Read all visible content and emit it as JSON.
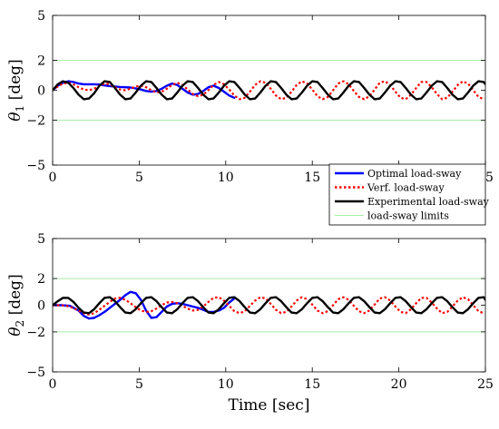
{
  "chart_data": [
    {
      "type": "line",
      "ylabel_symbol": "θ",
      "ylabel_sub": "1",
      "ylabel_unit": "[deg]",
      "xlim": [
        0,
        25
      ],
      "ylim": [
        -5,
        5
      ],
      "xticks": [
        0,
        5,
        10,
        15,
        20,
        25
      ],
      "yticks": [
        -5,
        -2,
        0,
        2,
        5
      ],
      "grid": false,
      "limits": [
        2,
        -2
      ],
      "legend": {
        "position": "bottom-right",
        "entries": [
          "Optimal load-sway",
          "Verf. load-sway",
          "Experimental load-sway",
          "load-sway limits"
        ]
      },
      "series": [
        {
          "name": "Optimal load-sway",
          "color": "#0000ff",
          "dash": "solid",
          "x": [
            0,
            0.3,
            0.6,
            0.9,
            1.2,
            1.5,
            1.8,
            2.1,
            2.4,
            2.7,
            3.0,
            3.3,
            3.6,
            3.9,
            4.2,
            4.5,
            4.8,
            5.1,
            5.4,
            5.7,
            6.0,
            6.3,
            6.6,
            6.9,
            7.2,
            7.5,
            7.8,
            8.1,
            8.4,
            8.7,
            9.0,
            9.3,
            9.6,
            9.9,
            10.2,
            10.5
          ],
          "y": [
            0,
            0.3,
            0.5,
            0.6,
            0.55,
            0.45,
            0.4,
            0.4,
            0.4,
            0.38,
            0.32,
            0.28,
            0.25,
            0.22,
            0.2,
            0.18,
            0.12,
            0.05,
            -0.05,
            -0.1,
            -0.05,
            0.1,
            0.3,
            0.45,
            0.35,
            0.1,
            -0.15,
            -0.3,
            -0.25,
            -0.05,
            0.2,
            0.3,
            0.15,
            -0.1,
            -0.35,
            -0.5
          ]
        },
        {
          "name": "Verf. load-sway",
          "color": "#ff0000",
          "dash": "dotted",
          "x": [
            0,
            0.3,
            0.6,
            0.9,
            1.2,
            1.5,
            1.8,
            2.1,
            2.4,
            2.7,
            3.0,
            3.3,
            3.6,
            3.9,
            4.2,
            4.5,
            4.8,
            5.1,
            5.4,
            5.7,
            6.0,
            6.3,
            6.6,
            6.9,
            7.2,
            7.5,
            7.8,
            8.1,
            8.4,
            8.7,
            9.0,
            9.3,
            9.6,
            9.9,
            10.2,
            10.5,
            10.8,
            11.1,
            11.4,
            11.7,
            12.0,
            12.3,
            12.6,
            12.9,
            13.2,
            13.5,
            13.8,
            14.1,
            14.4,
            14.7,
            15.0,
            15.3,
            15.6,
            15.9,
            16.2,
            16.5,
            16.8,
            17.1,
            17.4,
            17.7,
            18.0,
            18.3,
            18.6,
            18.9,
            19.2,
            19.5,
            19.8,
            20.1,
            20.4,
            20.7,
            21.0,
            21.3,
            21.6,
            21.9,
            22.2,
            22.5,
            22.8,
            23.1,
            23.4,
            23.7,
            24.0,
            24.3,
            24.6,
            24.9
          ],
          "y": [
            0,
            0.25,
            0.45,
            0.5,
            0.4,
            0.2,
            0.05,
            0,
            0.1,
            0.3,
            0.45,
            0.4,
            0.2,
            0.05,
            0,
            0.1,
            0.25,
            0.3,
            0.2,
            0,
            -0.15,
            -0.1,
            0.1,
            0.35,
            0.5,
            0.35,
            0.05,
            -0.25,
            -0.4,
            -0.3,
            0,
            0.35,
            0.55,
            0.4,
            0.05,
            -0.35,
            -0.6,
            -0.5,
            -0.1,
            0.35,
            0.6,
            0.5,
            0.1,
            -0.35,
            -0.6,
            -0.5,
            -0.1,
            0.35,
            0.6,
            0.45,
            0.05,
            -0.4,
            -0.6,
            -0.45,
            0,
            0.45,
            0.6,
            0.4,
            -0.05,
            -0.45,
            -0.6,
            -0.4,
            0.05,
            0.5,
            0.6,
            0.35,
            -0.1,
            -0.5,
            -0.6,
            -0.3,
            0.15,
            0.55,
            0.55,
            0.2,
            -0.25,
            -0.6,
            -0.5,
            -0.1,
            0.35,
            0.6,
            0.45,
            0,
            -0.45,
            -0.6
          ]
        },
        {
          "name": "Experimental load-sway",
          "color": "#000000",
          "dash": "solid",
          "x": [
            0,
            0.3,
            0.6,
            0.9,
            1.2,
            1.5,
            1.8,
            2.1,
            2.4,
            2.7,
            3.0,
            3.3,
            3.6,
            3.9,
            4.2,
            4.5,
            4.8,
            5.1,
            5.4,
            5.7,
            6.0,
            6.3,
            6.6,
            6.9,
            7.2,
            7.5,
            7.8,
            8.1,
            8.4,
            8.7,
            9.0,
            9.3,
            9.6,
            9.9,
            10.2,
            10.5,
            10.8,
            11.1,
            11.4,
            11.7,
            12.0,
            12.3,
            12.6,
            12.9,
            13.2,
            13.5,
            13.8,
            14.1,
            14.4,
            14.7,
            15.0,
            15.3,
            15.6,
            15.9,
            16.2,
            16.5,
            16.8,
            17.1,
            17.4,
            17.7,
            18.0,
            18.3,
            18.6,
            18.9,
            19.2,
            19.5,
            19.8,
            20.1,
            20.4,
            20.7,
            21.0,
            21.3,
            21.6,
            21.9,
            22.2,
            22.5,
            22.8,
            23.1,
            23.4,
            23.7,
            24.0,
            24.3,
            24.6,
            24.9,
            25.0
          ],
          "y": [
            0,
            0.4,
            0.6,
            0.5,
            0.15,
            -0.3,
            -0.6,
            -0.55,
            -0.2,
            0.3,
            0.6,
            0.55,
            0.15,
            -0.3,
            -0.6,
            -0.55,
            -0.15,
            0.3,
            0.6,
            0.55,
            0.15,
            -0.3,
            -0.6,
            -0.55,
            -0.15,
            0.3,
            0.6,
            0.55,
            0.15,
            -0.3,
            -0.6,
            -0.55,
            -0.15,
            0.3,
            0.6,
            0.55,
            0.15,
            -0.3,
            -0.6,
            -0.55,
            -0.15,
            0.3,
            0.6,
            0.55,
            0.15,
            -0.3,
            -0.6,
            -0.55,
            -0.15,
            0.3,
            0.6,
            0.55,
            0.15,
            -0.3,
            -0.6,
            -0.55,
            -0.15,
            0.3,
            0.6,
            0.55,
            0.15,
            -0.3,
            -0.6,
            -0.55,
            -0.15,
            0.3,
            0.6,
            0.55,
            0.15,
            -0.3,
            -0.6,
            -0.55,
            -0.15,
            0.3,
            0.6,
            0.55,
            0.15,
            -0.3,
            -0.6,
            -0.55,
            -0.15,
            0.3,
            0.6,
            0.55,
            0.4
          ]
        }
      ]
    },
    {
      "type": "line",
      "ylabel_symbol": "θ",
      "ylabel_sub": "2",
      "ylabel_unit": "[deg]",
      "xlabel": "Time [sec]",
      "xlim": [
        0,
        25
      ],
      "ylim": [
        -5,
        5
      ],
      "xticks": [
        0,
        5,
        10,
        15,
        20,
        25
      ],
      "yticks": [
        -5,
        -2,
        0,
        2,
        5
      ],
      "grid": false,
      "limits": [
        2,
        -2
      ],
      "series": [
        {
          "name": "Optimal load-sway",
          "color": "#0000ff",
          "dash": "solid",
          "x": [
            0,
            0.5,
            1.0,
            1.5,
            1.8,
            2.1,
            2.4,
            2.7,
            3.0,
            3.3,
            3.6,
            3.9,
            4.2,
            4.5,
            4.8,
            5.1,
            5.4,
            5.7,
            6.0,
            6.3,
            6.6,
            6.9,
            7.2,
            7.5,
            7.8,
            8.1,
            8.4,
            8.7,
            9.0,
            9.3,
            9.6,
            9.9,
            10.2,
            10.5
          ],
          "y": [
            0,
            0,
            -0.05,
            -0.4,
            -0.8,
            -1.0,
            -0.95,
            -0.75,
            -0.5,
            -0.2,
            0.1,
            0.4,
            0.75,
            1.0,
            0.9,
            0.4,
            -0.4,
            -0.95,
            -0.9,
            -0.5,
            -0.1,
            0.1,
            0.15,
            0.1,
            0,
            -0.1,
            -0.2,
            -0.35,
            -0.5,
            -0.5,
            -0.4,
            -0.2,
            0.2,
            0.5
          ]
        },
        {
          "name": "Verf. load-sway",
          "color": "#ff0000",
          "dash": "dotted",
          "x": [
            0,
            0.5,
            1.0,
            1.5,
            1.8,
            2.1,
            2.4,
            2.7,
            3.0,
            3.3,
            3.6,
            3.9,
            4.2,
            4.5,
            4.8,
            5.1,
            5.4,
            5.7,
            6.0,
            6.3,
            6.6,
            6.9,
            7.2,
            7.5,
            7.8,
            8.1,
            8.4,
            8.7,
            9.0,
            9.3,
            9.6,
            9.9,
            10.2,
            10.5,
            10.8,
            11.1,
            11.4,
            11.7,
            12.0,
            12.3,
            12.6,
            12.9,
            13.2,
            13.5,
            13.8,
            14.1,
            14.4,
            14.7,
            15.0,
            15.3,
            15.6,
            15.9,
            16.2,
            16.5,
            16.8,
            17.1,
            17.4,
            17.7,
            18.0,
            18.3,
            18.6,
            18.9,
            19.2,
            19.5,
            19.8,
            20.1,
            20.4,
            20.7,
            21.0,
            21.3,
            21.6,
            21.9,
            22.2,
            22.5,
            22.8,
            23.1,
            23.4,
            23.7,
            24.0,
            24.3,
            24.6,
            24.9
          ],
          "y": [
            0,
            0,
            -0.1,
            -0.4,
            -0.6,
            -0.7,
            -0.6,
            -0.35,
            -0.05,
            0.25,
            0.5,
            0.55,
            0.4,
            0.15,
            -0.15,
            -0.4,
            -0.5,
            -0.45,
            -0.25,
            0,
            0.2,
            0.25,
            0.15,
            -0.05,
            -0.25,
            -0.4,
            -0.35,
            -0.1,
            0.25,
            0.55,
            0.6,
            0.35,
            -0.05,
            -0.45,
            -0.6,
            -0.45,
            -0.05,
            0.35,
            0.6,
            0.5,
            0.1,
            -0.35,
            -0.6,
            -0.5,
            -0.1,
            0.35,
            0.6,
            0.45,
            0.05,
            -0.4,
            -0.6,
            -0.45,
            0,
            0.45,
            0.6,
            0.4,
            -0.05,
            -0.45,
            -0.6,
            -0.4,
            0.05,
            0.5,
            0.6,
            0.35,
            -0.1,
            -0.5,
            -0.6,
            -0.3,
            0.15,
            0.55,
            0.55,
            0.2,
            -0.25,
            -0.6,
            -0.5,
            -0.1,
            0.35,
            0.6,
            0.45,
            0,
            -0.45,
            -0.6
          ]
        },
        {
          "name": "Experimental load-sway",
          "color": "#000000",
          "dash": "solid",
          "x": [
            0,
            0.3,
            0.6,
            0.9,
            1.2,
            1.5,
            1.8,
            2.1,
            2.4,
            2.7,
            3.0,
            3.3,
            3.6,
            3.9,
            4.2,
            4.5,
            4.8,
            5.1,
            5.4,
            5.7,
            6.0,
            6.3,
            6.6,
            6.9,
            7.2,
            7.5,
            7.8,
            8.1,
            8.4,
            8.7,
            9.0,
            9.3,
            9.6,
            9.9,
            10.2,
            10.5,
            10.8,
            11.1,
            11.4,
            11.7,
            12.0,
            12.3,
            12.6,
            12.9,
            13.2,
            13.5,
            13.8,
            14.1,
            14.4,
            14.7,
            15.0,
            15.3,
            15.6,
            15.9,
            16.2,
            16.5,
            16.8,
            17.1,
            17.4,
            17.7,
            18.0,
            18.3,
            18.6,
            18.9,
            19.2,
            19.5,
            19.8,
            20.1,
            20.4,
            20.7,
            21.0,
            21.3,
            21.6,
            21.9,
            22.2,
            22.5,
            22.8,
            23.1,
            23.4,
            23.7,
            24.0,
            24.3,
            24.6,
            24.9,
            25.0
          ],
          "y": [
            0,
            0.3,
            0.55,
            0.55,
            0.25,
            -0.2,
            -0.55,
            -0.6,
            -0.3,
            0.15,
            0.55,
            0.6,
            0.3,
            -0.15,
            -0.55,
            -0.6,
            -0.3,
            0.15,
            0.55,
            0.6,
            0.3,
            -0.15,
            -0.55,
            -0.6,
            -0.3,
            0.15,
            0.55,
            0.6,
            0.3,
            -0.15,
            -0.55,
            -0.6,
            -0.3,
            0.15,
            0.55,
            0.6,
            0.3,
            -0.15,
            -0.55,
            -0.6,
            -0.3,
            0.15,
            0.55,
            0.6,
            0.3,
            -0.15,
            -0.55,
            -0.6,
            -0.3,
            0.15,
            0.55,
            0.6,
            0.3,
            -0.15,
            -0.55,
            -0.6,
            -0.3,
            0.15,
            0.55,
            0.6,
            0.3,
            -0.15,
            -0.55,
            -0.6,
            -0.3,
            0.15,
            0.55,
            0.6,
            0.3,
            -0.15,
            -0.55,
            -0.6,
            -0.3,
            0.15,
            0.55,
            0.6,
            0.3,
            -0.15,
            -0.55,
            -0.6,
            -0.3,
            0.15,
            0.55,
            0.6,
            0.4
          ]
        }
      ]
    }
  ],
  "colors": {
    "limit_line": "#a6eea6",
    "axis": "#000000",
    "background": "#ffffff"
  }
}
